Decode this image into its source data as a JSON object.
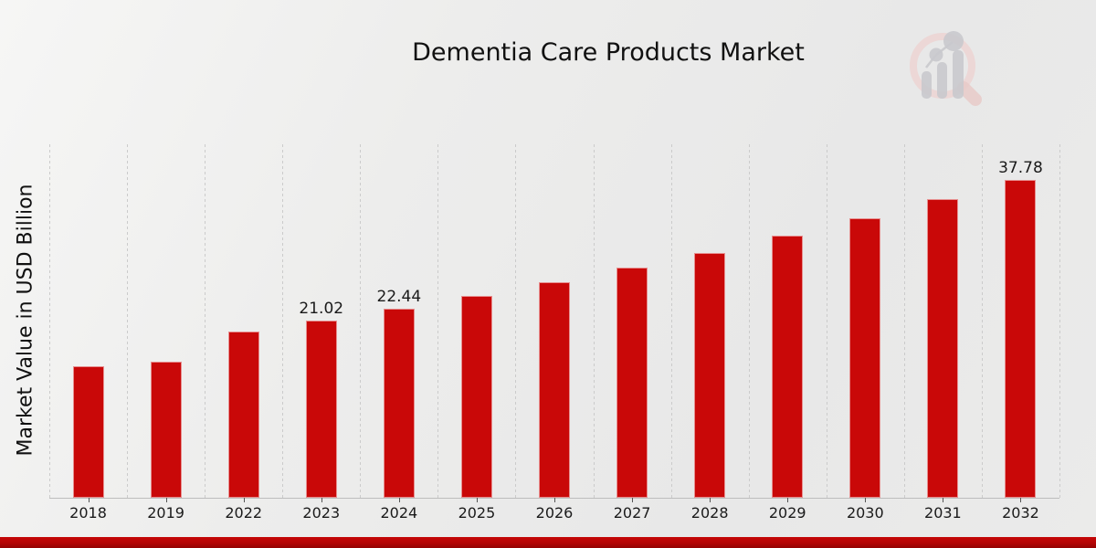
{
  "page": {
    "title": "Dementia Care Products Market",
    "ylabel": "Market Value in USD Billion",
    "accent_color": "#c90808",
    "footer_color": "#b30404",
    "background_color": "#ebebea",
    "logo_icon": "magnifier-bar-chart-logo"
  },
  "chart_data": {
    "type": "bar",
    "title": "Dementia Care Products Market",
    "xlabel": "",
    "ylabel": "Market Value in USD Billion",
    "categories": [
      "2018",
      "2019",
      "2022",
      "2023",
      "2024",
      "2025",
      "2026",
      "2027",
      "2028",
      "2029",
      "2030",
      "2031",
      "2032"
    ],
    "values": [
      15.6,
      16.2,
      19.8,
      21.02,
      22.44,
      24.0,
      25.6,
      27.3,
      29.1,
      31.1,
      33.2,
      35.5,
      37.78
    ],
    "data_labels": {
      "2023": "21.02",
      "2024": "22.44",
      "2032": "37.78"
    },
    "bar_color": "#c90808",
    "ylim": [
      0,
      42
    ],
    "grid": "vertical-dashed-category-boundaries",
    "legend": "none",
    "y_tick_labels": "none"
  }
}
